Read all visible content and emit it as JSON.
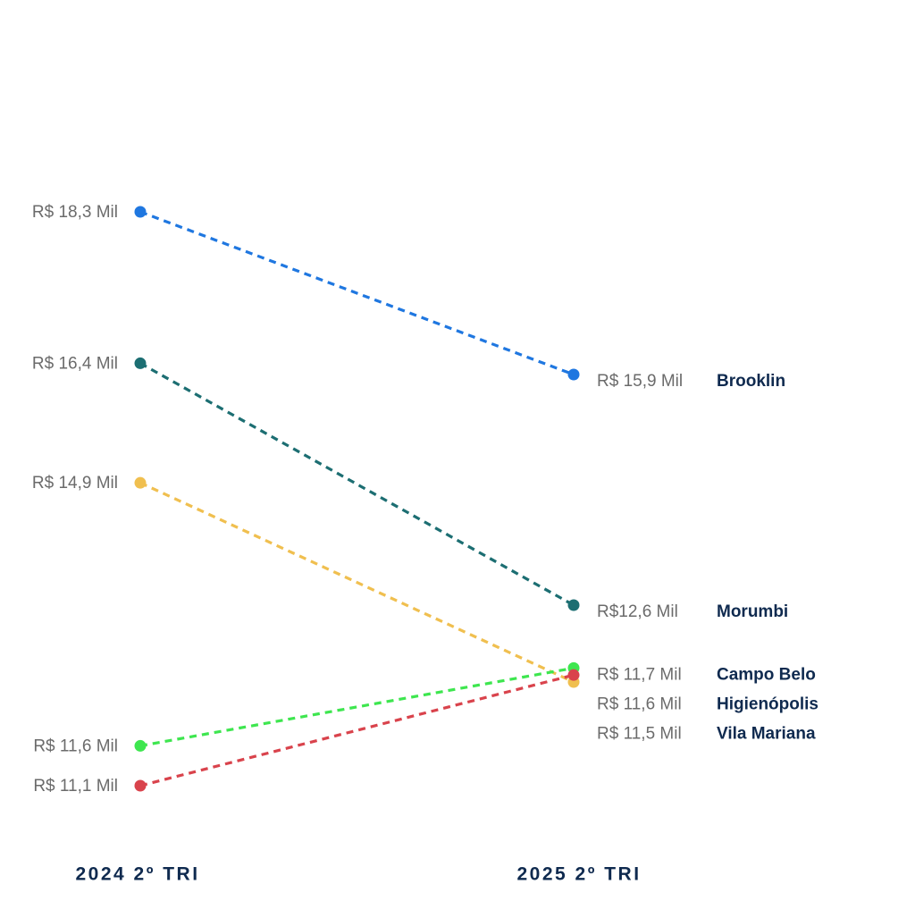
{
  "chart_data": {
    "type": "line",
    "categories": [
      "2024 2º TRI",
      "2025 2º TRI"
    ],
    "series": [
      {
        "name": "Brooklin",
        "color": "#1f77e0",
        "values": [
          18.3,
          15.9
        ],
        "labels": [
          "R$ 18,3 Mil",
          "R$ 15,9 Mil"
        ]
      },
      {
        "name": "Morumbi",
        "color": "#1c6e72",
        "values": [
          16.4,
          12.6
        ],
        "labels": [
          "R$ 16,4 Mil",
          "R$12,6 Mil"
        ]
      },
      {
        "name": "Vila Mariana",
        "color": "#f0bf4f",
        "values": [
          14.9,
          11.5
        ],
        "labels": [
          "R$ 14,9 Mil",
          "R$ 11,5 Mil"
        ]
      },
      {
        "name": "Campo Belo",
        "color": "#3ee64f",
        "values": [
          11.6,
          11.7
        ],
        "labels": [
          "R$ 11,6 Mil",
          "R$ 11,7 Mil"
        ]
      },
      {
        "name": "Higienópolis",
        "color": "#d9434c",
        "values": [
          11.1,
          11.6
        ],
        "labels": [
          "R$ 11,1 Mil",
          "R$ 11,6 Mil"
        ]
      }
    ],
    "grid": false,
    "legend": "right"
  }
}
